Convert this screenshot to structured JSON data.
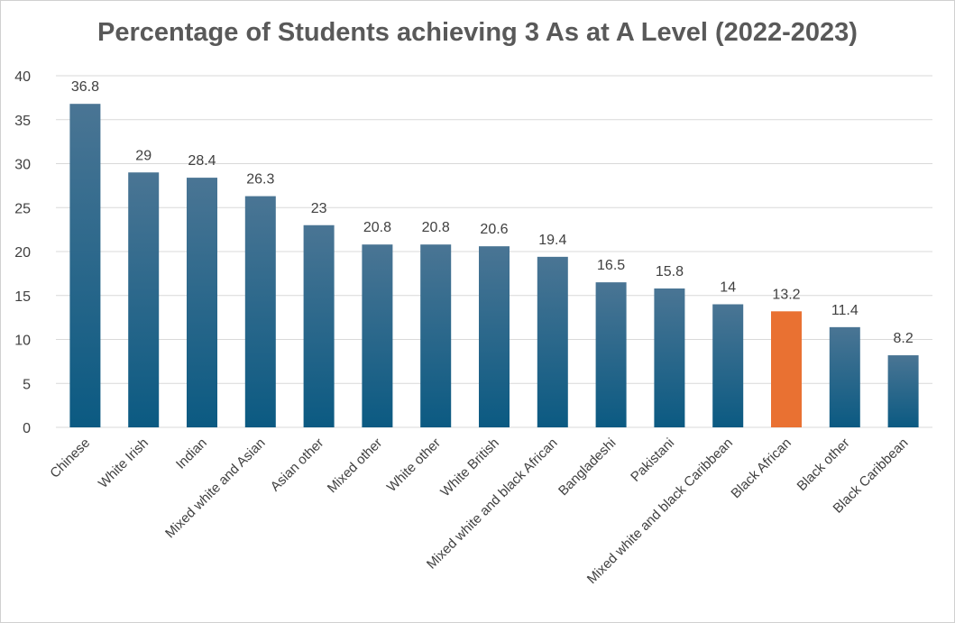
{
  "chart_data": {
    "type": "bar",
    "title": "Percentage of Students achieving 3 As at A Level (2022-2023)",
    "xlabel": "",
    "ylabel": "",
    "ylim": [
      0,
      40
    ],
    "yticks": [
      0,
      5,
      10,
      15,
      20,
      25,
      30,
      35,
      40
    ],
    "grid": true,
    "categories": [
      "Chinese",
      "White Irish",
      "Indian",
      "Mixed white and Asian",
      "Asian other",
      "Mixed other",
      "White other",
      "White British",
      "Mixed white and black African",
      "Bangladeshi",
      "Pakistani",
      "Mixed white and black Caribbean",
      "Black African",
      "Black other",
      "Black Caribbean"
    ],
    "values": [
      36.8,
      29,
      28.4,
      26.3,
      23,
      20.8,
      20.8,
      20.6,
      19.4,
      16.5,
      15.8,
      14,
      13.2,
      11.4,
      8.2
    ],
    "value_labels": [
      "36.8",
      "29",
      "28.4",
      "26.3",
      "23",
      "20.8",
      "20.8",
      "20.6",
      "19.4",
      "16.5",
      "15.8",
      "14",
      "13.2",
      "11.4",
      "8.2"
    ],
    "colors": {
      "bar_top": "#4a7594",
      "bar_bottom": "#0b5a82",
      "highlight": "#e97132",
      "grid": "#d9d9d9"
    },
    "highlight_index": 12
  }
}
